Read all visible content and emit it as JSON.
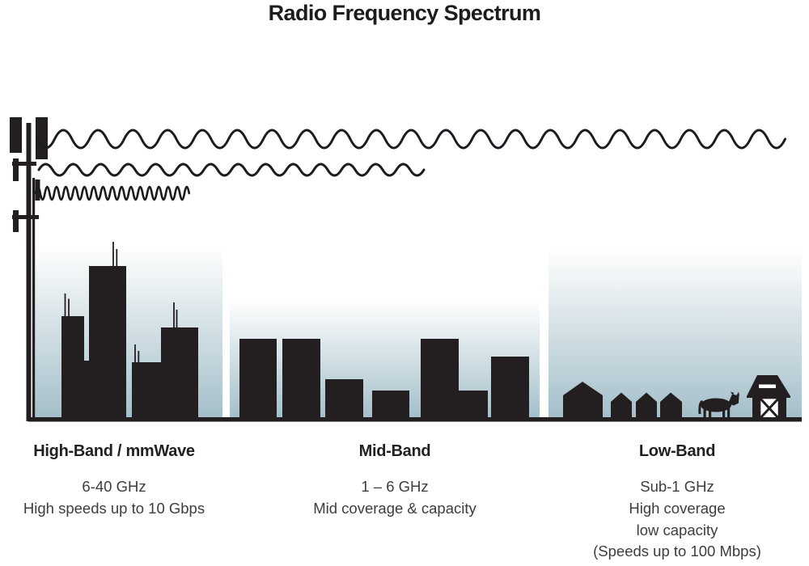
{
  "title": "Radio Frequency Spectrum",
  "bands": [
    {
      "id": "high",
      "name": "High-Band / mmWave",
      "frequency": "6-40 GHz",
      "details": [
        "High speeds up to 10 Gbps"
      ],
      "wave": "high-frequency-short-range-wave",
      "scene": "city-skyscrapers"
    },
    {
      "id": "mid",
      "name": "Mid-Band",
      "frequency": "1 – 6 GHz",
      "details": [
        "Mid coverage & capacity"
      ],
      "wave": "mid-frequency-mid-range-wave",
      "scene": "midsize-buildings"
    },
    {
      "id": "low",
      "name": "Low-Band",
      "frequency": "Sub-1 GHz",
      "details": [
        "High coverage",
        "low capacity",
        "(Speeds up to 100 Mbps)"
      ],
      "wave": "low-frequency-long-range-wave",
      "scene": "rural-houses-cow-barn"
    }
  ],
  "icons": {
    "tower": "cell-tower-icon",
    "cow": "cow-icon",
    "barn": "barn-icon"
  },
  "colors": {
    "background": "#ffffff",
    "silhouette": "#231f20",
    "sky_gradient_top": "#ffffff",
    "sky_gradient_bottom": "#a4bfca",
    "text_primary": "#231f20",
    "text_secondary": "#3d3d3d"
  }
}
